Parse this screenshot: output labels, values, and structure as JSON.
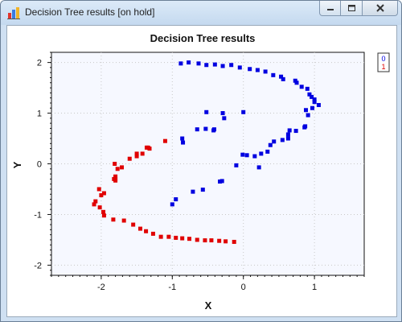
{
  "window": {
    "title": "Decision Tree results [on hold]",
    "icons": {
      "app": "chart-app-icon",
      "minimize": "minimize-icon",
      "maximize": "maximize-icon",
      "close": "close-icon"
    }
  },
  "colors": {
    "class0": "#0000e0",
    "class1": "#e00000",
    "plot_background": "#f6f8ff",
    "window_frame": "#cfe0f2"
  },
  "chart_data": {
    "type": "scatter",
    "title": "Decision Tree results",
    "xlabel": "X",
    "ylabel": "Y",
    "xlim": [
      -2.7,
      1.7
    ],
    "ylim": [
      -2.2,
      2.2
    ],
    "x_ticks": [
      -2,
      -1,
      0,
      1
    ],
    "x_tick_labels": [
      "-2",
      "-1",
      "0",
      "1"
    ],
    "y_ticks": [
      -2,
      -1,
      0,
      1,
      2
    ],
    "y_tick_labels": [
      "-2",
      "-1",
      "0",
      "1",
      "2"
    ],
    "grid": true,
    "legend": "top-right",
    "series": [
      {
        "name": "0",
        "color": "#0000e0",
        "points": [
          [
            -0.88,
            1.98
          ],
          [
            -0.77,
            2.0
          ],
          [
            -0.63,
            1.98
          ],
          [
            -0.52,
            1.95
          ],
          [
            -0.4,
            1.96
          ],
          [
            -0.29,
            1.93
          ],
          [
            -0.17,
            1.95
          ],
          [
            -0.05,
            1.9
          ],
          [
            0.09,
            1.87
          ],
          [
            0.2,
            1.85
          ],
          [
            0.31,
            1.82
          ],
          [
            0.42,
            1.75
          ],
          [
            0.53,
            1.72
          ],
          [
            0.56,
            1.67
          ],
          [
            0.73,
            1.64
          ],
          [
            0.75,
            1.6
          ],
          [
            0.82,
            1.52
          ],
          [
            0.9,
            1.48
          ],
          [
            0.93,
            1.37
          ],
          [
            0.96,
            1.32
          ],
          [
            1.0,
            1.27
          ],
          [
            1.0,
            1.22
          ],
          [
            1.06,
            1.16
          ],
          [
            0.97,
            1.1
          ],
          [
            0.88,
            1.06
          ],
          [
            0.91,
            0.96
          ],
          [
            0.87,
            0.74
          ],
          [
            0.86,
            0.72
          ],
          [
            0.74,
            0.65
          ],
          [
            0.65,
            0.66
          ],
          [
            0.63,
            0.58
          ],
          [
            0.63,
            0.5
          ],
          [
            0.55,
            0.47
          ],
          [
            0.43,
            0.44
          ],
          [
            0.38,
            0.37
          ],
          [
            0.34,
            0.24
          ],
          [
            0.25,
            0.2
          ],
          [
            0.16,
            0.15
          ],
          [
            0.22,
            -0.07
          ],
          [
            0.05,
            0.17
          ],
          [
            -0.01,
            0.18
          ],
          [
            -0.1,
            -0.03
          ],
          [
            -0.3,
            -0.34
          ],
          [
            -0.33,
            -0.35
          ],
          [
            -0.57,
            -0.51
          ],
          [
            -0.71,
            -0.55
          ],
          [
            -0.95,
            -0.7
          ],
          [
            -1.0,
            -0.8
          ],
          [
            -0.85,
            0.42
          ],
          [
            -0.86,
            0.5
          ],
          [
            -0.65,
            0.68
          ],
          [
            -0.53,
            0.69
          ],
          [
            -0.42,
            0.66
          ],
          [
            -0.52,
            1.02
          ],
          [
            -0.29,
            1.0
          ],
          [
            0.0,
            1.02
          ],
          [
            -0.27,
            0.9
          ],
          [
            -0.41,
            0.68
          ]
        ]
      },
      {
        "name": "1",
        "color": "#e00000",
        "points": [
          [
            -1.32,
            0.3
          ],
          [
            -1.36,
            0.32
          ],
          [
            -1.42,
            0.2
          ],
          [
            -1.5,
            0.2
          ],
          [
            -1.5,
            0.15
          ],
          [
            -1.6,
            0.1
          ],
          [
            -1.71,
            -0.07
          ],
          [
            -1.77,
            -0.1
          ],
          [
            -1.81,
            0.0
          ],
          [
            -1.8,
            -0.3
          ],
          [
            -1.8,
            -0.25
          ],
          [
            -1.82,
            -0.3
          ],
          [
            -1.8,
            -0.33
          ],
          [
            -2.03,
            -0.5
          ],
          [
            -1.96,
            -0.58
          ],
          [
            -2.0,
            -0.62
          ],
          [
            -2.08,
            -0.74
          ],
          [
            -2.1,
            -0.8
          ],
          [
            -2.02,
            -0.86
          ],
          [
            -1.97,
            -0.95
          ],
          [
            -1.96,
            -1.02
          ],
          [
            -1.83,
            -1.1
          ],
          [
            -1.68,
            -1.12
          ],
          [
            -1.55,
            -1.2
          ],
          [
            -1.45,
            -1.28
          ],
          [
            -1.37,
            -1.33
          ],
          [
            -1.27,
            -1.38
          ],
          [
            -1.16,
            -1.44
          ],
          [
            -1.05,
            -1.44
          ],
          [
            -0.95,
            -1.46
          ],
          [
            -0.86,
            -1.47
          ],
          [
            -0.76,
            -1.48
          ],
          [
            -0.65,
            -1.5
          ],
          [
            -0.54,
            -1.51
          ],
          [
            -0.45,
            -1.51
          ],
          [
            -0.34,
            -1.52
          ],
          [
            -0.25,
            -1.53
          ],
          [
            -0.13,
            -1.54
          ],
          [
            -1.1,
            0.45
          ],
          [
            -1.34,
            0.32
          ]
        ]
      }
    ]
  }
}
